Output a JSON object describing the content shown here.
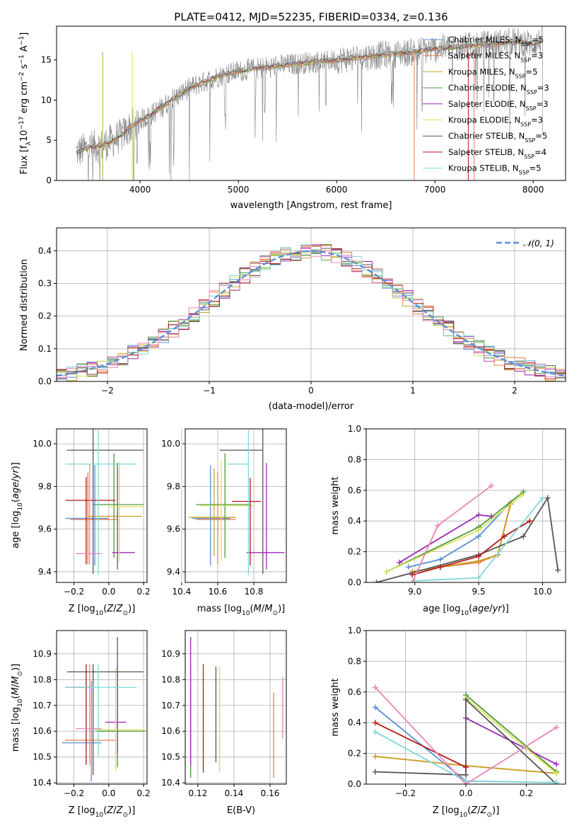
{
  "figure": {
    "title": "PLATE=0412, MJD=52235, FIBERID=0334, z=0.136"
  },
  "colors": {
    "Chabrier MILES": "#5b8ed6",
    "Salpeter MILES": "#e87d4a",
    "Kroupa MILES": "#c9a227",
    "Chabrier ELODIE": "#4d9a3a",
    "Salpeter ELODIE": "#9b2ab5",
    "Kroupa ELODIE": "#d9e25b",
    "Chabrier STELIB": "#555555",
    "Salpeter STELIB": "#b51818",
    "Kroupa STELIB": "#7fd8dc",
    "pink": "#e886b8",
    "data_spectrum": "#808080",
    "normal_curve": "#5b8ed6"
  },
  "chart_data": [
    {
      "type": "line",
      "id": "spectrum",
      "xlabel": "wavelength [Angstrom, rest frame]",
      "ylabel": "Flux [f",
      "ylabel_parts": [
        "Flux [f",
        "λ",
        "10",
        "−17",
        " erg cm",
        "−2",
        " s",
        "−1",
        " A",
        "−1",
        "]"
      ],
      "xlim": [
        3150,
        8330
      ],
      "ylim": [
        0,
        19.2
      ],
      "xticks": [
        4000,
        5000,
        6000,
        7000,
        8000
      ],
      "yticks": [
        0,
        5,
        10,
        15
      ],
      "grid": false,
      "legend_position": "top-right",
      "legend": [
        {
          "name": "Chabrier MILES",
          "nssp": "5"
        },
        {
          "name": "Salpeter MILES",
          "nssp": "3"
        },
        {
          "name": "Kroupa MILES",
          "nssp": "5"
        },
        {
          "name": "Chabrier ELODIE",
          "nssp": "3"
        },
        {
          "name": "Salpeter ELODIE",
          "nssp": "3"
        },
        {
          "name": "Kroupa ELODIE",
          "nssp": "3"
        },
        {
          "name": "Chabrier STELIB",
          "nssp": "5"
        },
        {
          "name": "Salpeter STELIB",
          "nssp": "4"
        },
        {
          "name": "Kroupa STELIB",
          "nssp": "5"
        }
      ],
      "legend_nssp_label": "N",
      "legend_nssp_sub": "SSP",
      "continuum": {
        "wavelength": [
          3350,
          3500,
          3600,
          3700,
          3800,
          3900,
          4000,
          4100,
          4300,
          4500,
          4800,
          5000,
          5200,
          5500,
          5800,
          6000,
          6300,
          6600,
          6800,
          7000,
          7300,
          7600,
          7800,
          8000,
          8100
        ],
        "flux": [
          3.5,
          4.2,
          4.3,
          4.8,
          5.5,
          6.6,
          7.5,
          8.1,
          9.8,
          11.5,
          13.0,
          13.6,
          14.0,
          14.4,
          14.8,
          15.0,
          15.4,
          15.8,
          16.0,
          16.4,
          16.7,
          17.0,
          17.3,
          17.0,
          17.5
        ]
      }
    },
    {
      "type": "line",
      "id": "residuals",
      "xlabel": "(data-model)/error",
      "ylabel": "Normed distribution",
      "xlim": [
        -2.5,
        2.5
      ],
      "ylim": [
        0,
        0.47
      ],
      "xticks": [
        -2,
        -1,
        0,
        1,
        2
      ],
      "yticks": [
        0.0,
        0.1,
        0.2,
        0.3,
        0.4
      ],
      "grid": true,
      "legend_position": "top-right",
      "legend": [
        {
          "name": "𝒩(0, 1)"
        }
      ],
      "normal": {
        "mu": 0,
        "sigma": 1
      },
      "bin_width": 0.1
    },
    {
      "type": "scatter",
      "id": "age-vs-Z",
      "xlabel": "Z [log",
      "ylabel": "age  [log",
      "xlim": [
        -0.3,
        0.22
      ],
      "ylim": [
        9.35,
        10.07
      ],
      "xticks": [
        -0.2,
        0.0,
        0.2
      ],
      "yticks": [
        9.4,
        9.6,
        9.8,
        10.0
      ],
      "grid": true,
      "points": [
        {
          "model": "Chabrier MILES",
          "x": -0.08,
          "xerr": [
            0.17,
            0.08
          ],
          "y": 9.65,
          "yerr": [
            0.22,
            0.25
          ]
        },
        {
          "model": "Salpeter MILES",
          "x": -0.12,
          "xerr": [
            0.1,
            0.17
          ],
          "y": 9.645,
          "yerr": [
            0.21,
            0.22
          ]
        },
        {
          "model": "Kroupa MILES",
          "x": 0.06,
          "xerr": [
            0.18,
            0.13
          ],
          "y": 9.66,
          "yerr": [
            0.18,
            0.23
          ]
        },
        {
          "model": "Chabrier ELODIE",
          "x": 0.03,
          "xerr": [
            0.12,
            0.17
          ],
          "y": 9.715,
          "yerr": [
            0.25,
            0.24
          ]
        },
        {
          "model": "Salpeter ELODIE",
          "x": 0.05,
          "xerr": [
            0.03,
            0.1
          ],
          "y": 9.49,
          "yerr": [
            0.08,
            0.42
          ]
        },
        {
          "model": "Kroupa ELODIE",
          "x": 0.06,
          "xerr": [
            0.06,
            0.14
          ],
          "y": 9.705,
          "yerr": [
            0.26,
            0.21
          ]
        },
        {
          "model": "Chabrier STELIB",
          "x": -0.09,
          "xerr": [
            0.15,
            0.29
          ],
          "y": 9.97,
          "yerr": [
            0.58,
            0.1
          ]
        },
        {
          "model": "Salpeter STELIB",
          "x": -0.13,
          "xerr": [
            0.12,
            0.17
          ],
          "y": 9.735,
          "yerr": [
            0.3,
            0.11
          ]
        },
        {
          "model": "Kroupa STELIB",
          "x": -0.06,
          "xerr": [
            0.19,
            0.22
          ],
          "y": 9.905,
          "yerr": [
            0.52,
            0.16
          ]
        },
        {
          "model": "pink",
          "x": -0.11,
          "xerr": [
            0.08,
            0.07
          ],
          "y": 9.485,
          "yerr": [
            0.05,
            0.42
          ]
        }
      ]
    },
    {
      "type": "scatter",
      "id": "age-vs-mass",
      "xlabel": "mass [log",
      "ylabel": "",
      "xlim": [
        10.42,
        10.98
      ],
      "ylim": [
        9.35,
        10.07
      ],
      "xticks": [
        10.4,
        10.6,
        10.8
      ],
      "yticks": [
        9.4,
        9.6,
        9.8,
        10.0
      ],
      "grid": true,
      "points": [
        {
          "model": "Chabrier MILES",
          "x": 10.56,
          "xerr": [
            0.1,
            0.11
          ],
          "y": 9.65,
          "yerr": [
            0.22,
            0.25
          ]
        },
        {
          "model": "Salpeter MILES",
          "x": 10.6,
          "xerr": [
            0.12,
            0.1
          ],
          "y": 9.645,
          "yerr": [
            0.21,
            0.22
          ]
        },
        {
          "model": "Kroupa MILES",
          "x": 10.58,
          "xerr": [
            0.14,
            0.12
          ],
          "y": 9.655,
          "yerr": [
            0.18,
            0.23
          ]
        },
        {
          "model": "Chabrier ELODIE",
          "x": 10.64,
          "xerr": [
            0.16,
            0.14
          ],
          "y": 9.715,
          "yerr": [
            0.25,
            0.24
          ]
        },
        {
          "model": "Salpeter ELODIE",
          "x": 10.87,
          "xerr": [
            0.11,
            0.1
          ],
          "y": 9.49,
          "yerr": [
            0.08,
            0.42
          ]
        },
        {
          "model": "Kroupa ELODIE",
          "x": 10.62,
          "xerr": [
            0.12,
            0.18
          ],
          "y": 9.71,
          "yerr": [
            0.26,
            0.21
          ]
        },
        {
          "model": "Chabrier STELIB",
          "x": 10.85,
          "xerr": [
            0.24,
            0.0
          ],
          "y": 9.97,
          "yerr": [
            0.58,
            0.1
          ]
        },
        {
          "model": "Salpeter STELIB",
          "x": 10.78,
          "xerr": [
            0.1,
            0.06
          ],
          "y": 9.73,
          "yerr": [
            0.3,
            0.11
          ]
        },
        {
          "model": "Kroupa STELIB",
          "x": 10.77,
          "xerr": [
            0.12,
            0.0
          ],
          "y": 9.905,
          "yerr": [
            0.52,
            0.16
          ]
        }
      ]
    },
    {
      "type": "line",
      "id": "weight-vs-age",
      "xlabel": "age  [log",
      "ylabel": "mass weight",
      "xlim": [
        8.62,
        10.18
      ],
      "ylim": [
        0,
        1.0
      ],
      "xticks": [
        9.0,
        9.5,
        10.0
      ],
      "yticks": [
        0.0,
        0.2,
        0.4,
        0.6,
        0.8,
        1.0
      ],
      "grid": true,
      "series": [
        {
          "model": "Chabrier MILES",
          "x": [
            8.95,
            9.2,
            9.5,
            9.75
          ],
          "y": [
            0.1,
            0.15,
            0.3,
            0.52
          ]
        },
        {
          "model": "Salpeter MILES",
          "x": [
            8.98,
            9.2,
            9.5,
            9.65,
            9.75
          ],
          "y": [
            0.07,
            0.1,
            0.13,
            0.18,
            0.52
          ]
        },
        {
          "model": "Kroupa MILES",
          "x": [
            8.98,
            9.2,
            9.5,
            9.65,
            9.75
          ],
          "y": [
            0.07,
            0.1,
            0.14,
            0.18,
            0.51
          ]
        },
        {
          "model": "Chabrier ELODIE",
          "x": [
            8.78,
            9.5,
            9.85
          ],
          "y": [
            0.07,
            0.36,
            0.59
          ]
        },
        {
          "model": "Salpeter ELODIE",
          "x": [
            8.88,
            9.5,
            9.6
          ],
          "y": [
            0.13,
            0.44,
            0.43
          ]
        },
        {
          "model": "Kroupa ELODIE",
          "x": [
            8.78,
            9.5,
            9.84
          ],
          "y": [
            0.07,
            0.34,
            0.57
          ]
        },
        {
          "model": "Chabrier STELIB",
          "x": [
            8.7,
            9.5,
            9.85,
            10.04,
            10.12
          ],
          "y": [
            0.0,
            0.18,
            0.3,
            0.55,
            0.08
          ]
        },
        {
          "model": "Salpeter STELIB",
          "x": [
            8.98,
            9.2,
            9.5,
            9.7,
            9.9
          ],
          "y": [
            0.05,
            0.1,
            0.17,
            0.3,
            0.4
          ]
        },
        {
          "model": "Kroupa STELIB",
          "x": [
            9.0,
            9.5,
            10.0
          ],
          "y": [
            0.01,
            0.03,
            0.55
          ]
        },
        {
          "model": "pink",
          "x": [
            8.98,
            9.18,
            9.6
          ],
          "y": [
            0.0,
            0.37,
            0.63
          ]
        }
      ]
    },
    {
      "type": "scatter",
      "id": "mass-vs-Z",
      "xlabel": "Z [log",
      "ylabel": "mass [log",
      "xlim": [
        -0.3,
        0.22
      ],
      "ylim": [
        10.395,
        10.99
      ],
      "xticks": [
        -0.2,
        0.0,
        0.2
      ],
      "yticks": [
        10.4,
        10.5,
        10.6,
        10.7,
        10.8,
        10.9
      ],
      "grid": true,
      "points": [
        {
          "model": "Chabrier MILES",
          "x": -0.1,
          "xerr": [
            0.17,
            0.06
          ],
          "y": 10.555,
          "yerr": [
            0.15,
            0.24
          ]
        },
        {
          "model": "Salpeter MILES",
          "x": -0.1,
          "xerr": [
            0.15,
            0.14
          ],
          "y": 10.565,
          "yerr": [
            0.14,
            0.18
          ]
        },
        {
          "model": "Kroupa MILES",
          "x": 0.0,
          "xerr": [
            0.05,
            0.05
          ],
          "y": 10.6,
          "yerr": [
            0.0,
            0.0
          ]
        },
        {
          "model": "Chabrier ELODIE",
          "x": 0.05,
          "xerr": [
            0.12,
            0.16
          ],
          "y": 10.6,
          "yerr": [
            0.14,
            0.26
          ]
        },
        {
          "model": "Salpeter ELODIE",
          "x": 0.05,
          "xerr": [
            0.07,
            0.05
          ],
          "y": 10.635,
          "yerr": [
            0.12,
            0.33
          ]
        },
        {
          "model": "Kroupa ELODIE",
          "x": 0.04,
          "xerr": [
            0.12,
            0.17
          ],
          "y": 10.605,
          "yerr": [
            0.16,
            0.24
          ]
        },
        {
          "model": "Chabrier STELIB",
          "x": -0.09,
          "xerr": [
            0.15,
            0.29
          ],
          "y": 10.83,
          "yerr": [
            0.4,
            0.03
          ]
        },
        {
          "model": "Salpeter STELIB",
          "x": -0.13,
          "xerr": [
            0.12,
            0.02
          ],
          "y": 10.77,
          "yerr": [
            0.3,
            0.09
          ]
        },
        {
          "model": "Kroupa STELIB",
          "x": -0.06,
          "xerr": [
            0.19,
            0.22
          ],
          "y": 10.77,
          "yerr": [
            0.27,
            0.09
          ]
        },
        {
          "model": "pink",
          "x": -0.11,
          "xerr": [
            0.08,
            0.07
          ],
          "y": 10.61,
          "yerr": [
            0.14,
            0.25
          ]
        }
      ]
    },
    {
      "type": "scatter",
      "id": "mass-vs-EBV",
      "xlabel": "E(B-V)",
      "ylabel": "",
      "xlim": [
        0.113,
        0.169
      ],
      "ylim": [
        10.395,
        10.99
      ],
      "xticks": [
        0.12,
        0.14,
        0.16
      ],
      "yticks": [
        10.4,
        10.5,
        10.6,
        10.7,
        10.8,
        10.9
      ],
      "grid": true,
      "points": [
        {
          "model": "Chabrier ELODIE",
          "x": 0.116,
          "xerr": [
            0,
            0
          ],
          "y": 10.6,
          "yerr": [
            0.18,
            0.25
          ]
        },
        {
          "model": "Salpeter ELODIE",
          "x": 0.116,
          "xerr": [
            0,
            0
          ],
          "y": 10.635,
          "yerr": [
            0.17,
            0.33
          ]
        },
        {
          "model": "Salpeter STELIB",
          "x": 0.123,
          "xerr": [
            0,
            0
          ],
          "y": 10.72,
          "yerr": [
            0.28,
            0.14
          ]
        },
        {
          "model": "Chabrier STELIB",
          "x": 0.13,
          "xerr": [
            0,
            0
          ],
          "y": 10.7,
          "yerr": [
            0.22,
            0.15
          ]
        },
        {
          "model": "Kroupa STELIB",
          "x": 0.132,
          "xerr": [
            0,
            0
          ],
          "y": 10.69,
          "yerr": [
            0.25,
            0.15
          ]
        },
        {
          "model": "Kroupa ELODIE",
          "x": 0.132,
          "xerr": [
            0,
            0
          ],
          "y": 10.66,
          "yerr": [
            0.22,
            0.19
          ]
        },
        {
          "model": "Salpeter MILES",
          "x": 0.162,
          "xerr": [
            0,
            0
          ],
          "y": 10.6,
          "yerr": [
            0.18,
            0.15
          ]
        },
        {
          "model": "pink",
          "x": 0.167,
          "xerr": [
            0,
            0
          ],
          "y": 10.68,
          "yerr": [
            0.11,
            0.13
          ]
        }
      ]
    },
    {
      "type": "line",
      "id": "weight-vs-Z",
      "xlabel": "Z [log",
      "ylabel": "mass weight",
      "xlim": [
        -0.33,
        0.33
      ],
      "ylim": [
        0,
        1.0
      ],
      "xticks": [
        -0.2,
        0.0,
        0.2
      ],
      "yticks": [
        0.0,
        0.2,
        0.4,
        0.6,
        0.8,
        1.0
      ],
      "grid": true,
      "series": [
        {
          "model": "Chabrier MILES",
          "x": [
            -0.3,
            0.0,
            0.3
          ],
          "y": [
            0.5,
            0.02,
            0.01
          ]
        },
        {
          "model": "Salpeter MILES",
          "x": [
            -0.3,
            0.0,
            0.3
          ],
          "y": [
            0.18,
            0.12,
            0.07
          ]
        },
        {
          "model": "Kroupa MILES",
          "x": [
            -0.3,
            0.0,
            0.3
          ],
          "y": [
            0.18,
            0.12,
            0.07
          ]
        },
        {
          "model": "Chabrier ELODIE",
          "x": [
            0.0,
            0.3
          ],
          "y": [
            0.58,
            0.08
          ]
        },
        {
          "model": "Salpeter ELODIE",
          "x": [
            0.0,
            0.3
          ],
          "y": [
            0.43,
            0.13
          ]
        },
        {
          "model": "Kroupa ELODIE",
          "x": [
            0.0,
            0.3
          ],
          "y": [
            0.56,
            0.07
          ]
        },
        {
          "model": "Chabrier STELIB",
          "x": [
            -0.3,
            0.0,
            0.0,
            0.3
          ],
          "y": [
            0.08,
            0.06,
            0.55,
            0.0
          ]
        },
        {
          "model": "Salpeter STELIB",
          "x": [
            -0.3,
            0.0
          ],
          "y": [
            0.4,
            0.11
          ]
        },
        {
          "model": "Kroupa STELIB",
          "x": [
            -0.3,
            0.0,
            0.3
          ],
          "y": [
            0.34,
            0.02,
            0.01
          ]
        },
        {
          "model": "pink",
          "x": [
            -0.3,
            0.0,
            0.3
          ],
          "y": [
            0.63,
            0.0,
            0.37
          ]
        }
      ]
    }
  ]
}
